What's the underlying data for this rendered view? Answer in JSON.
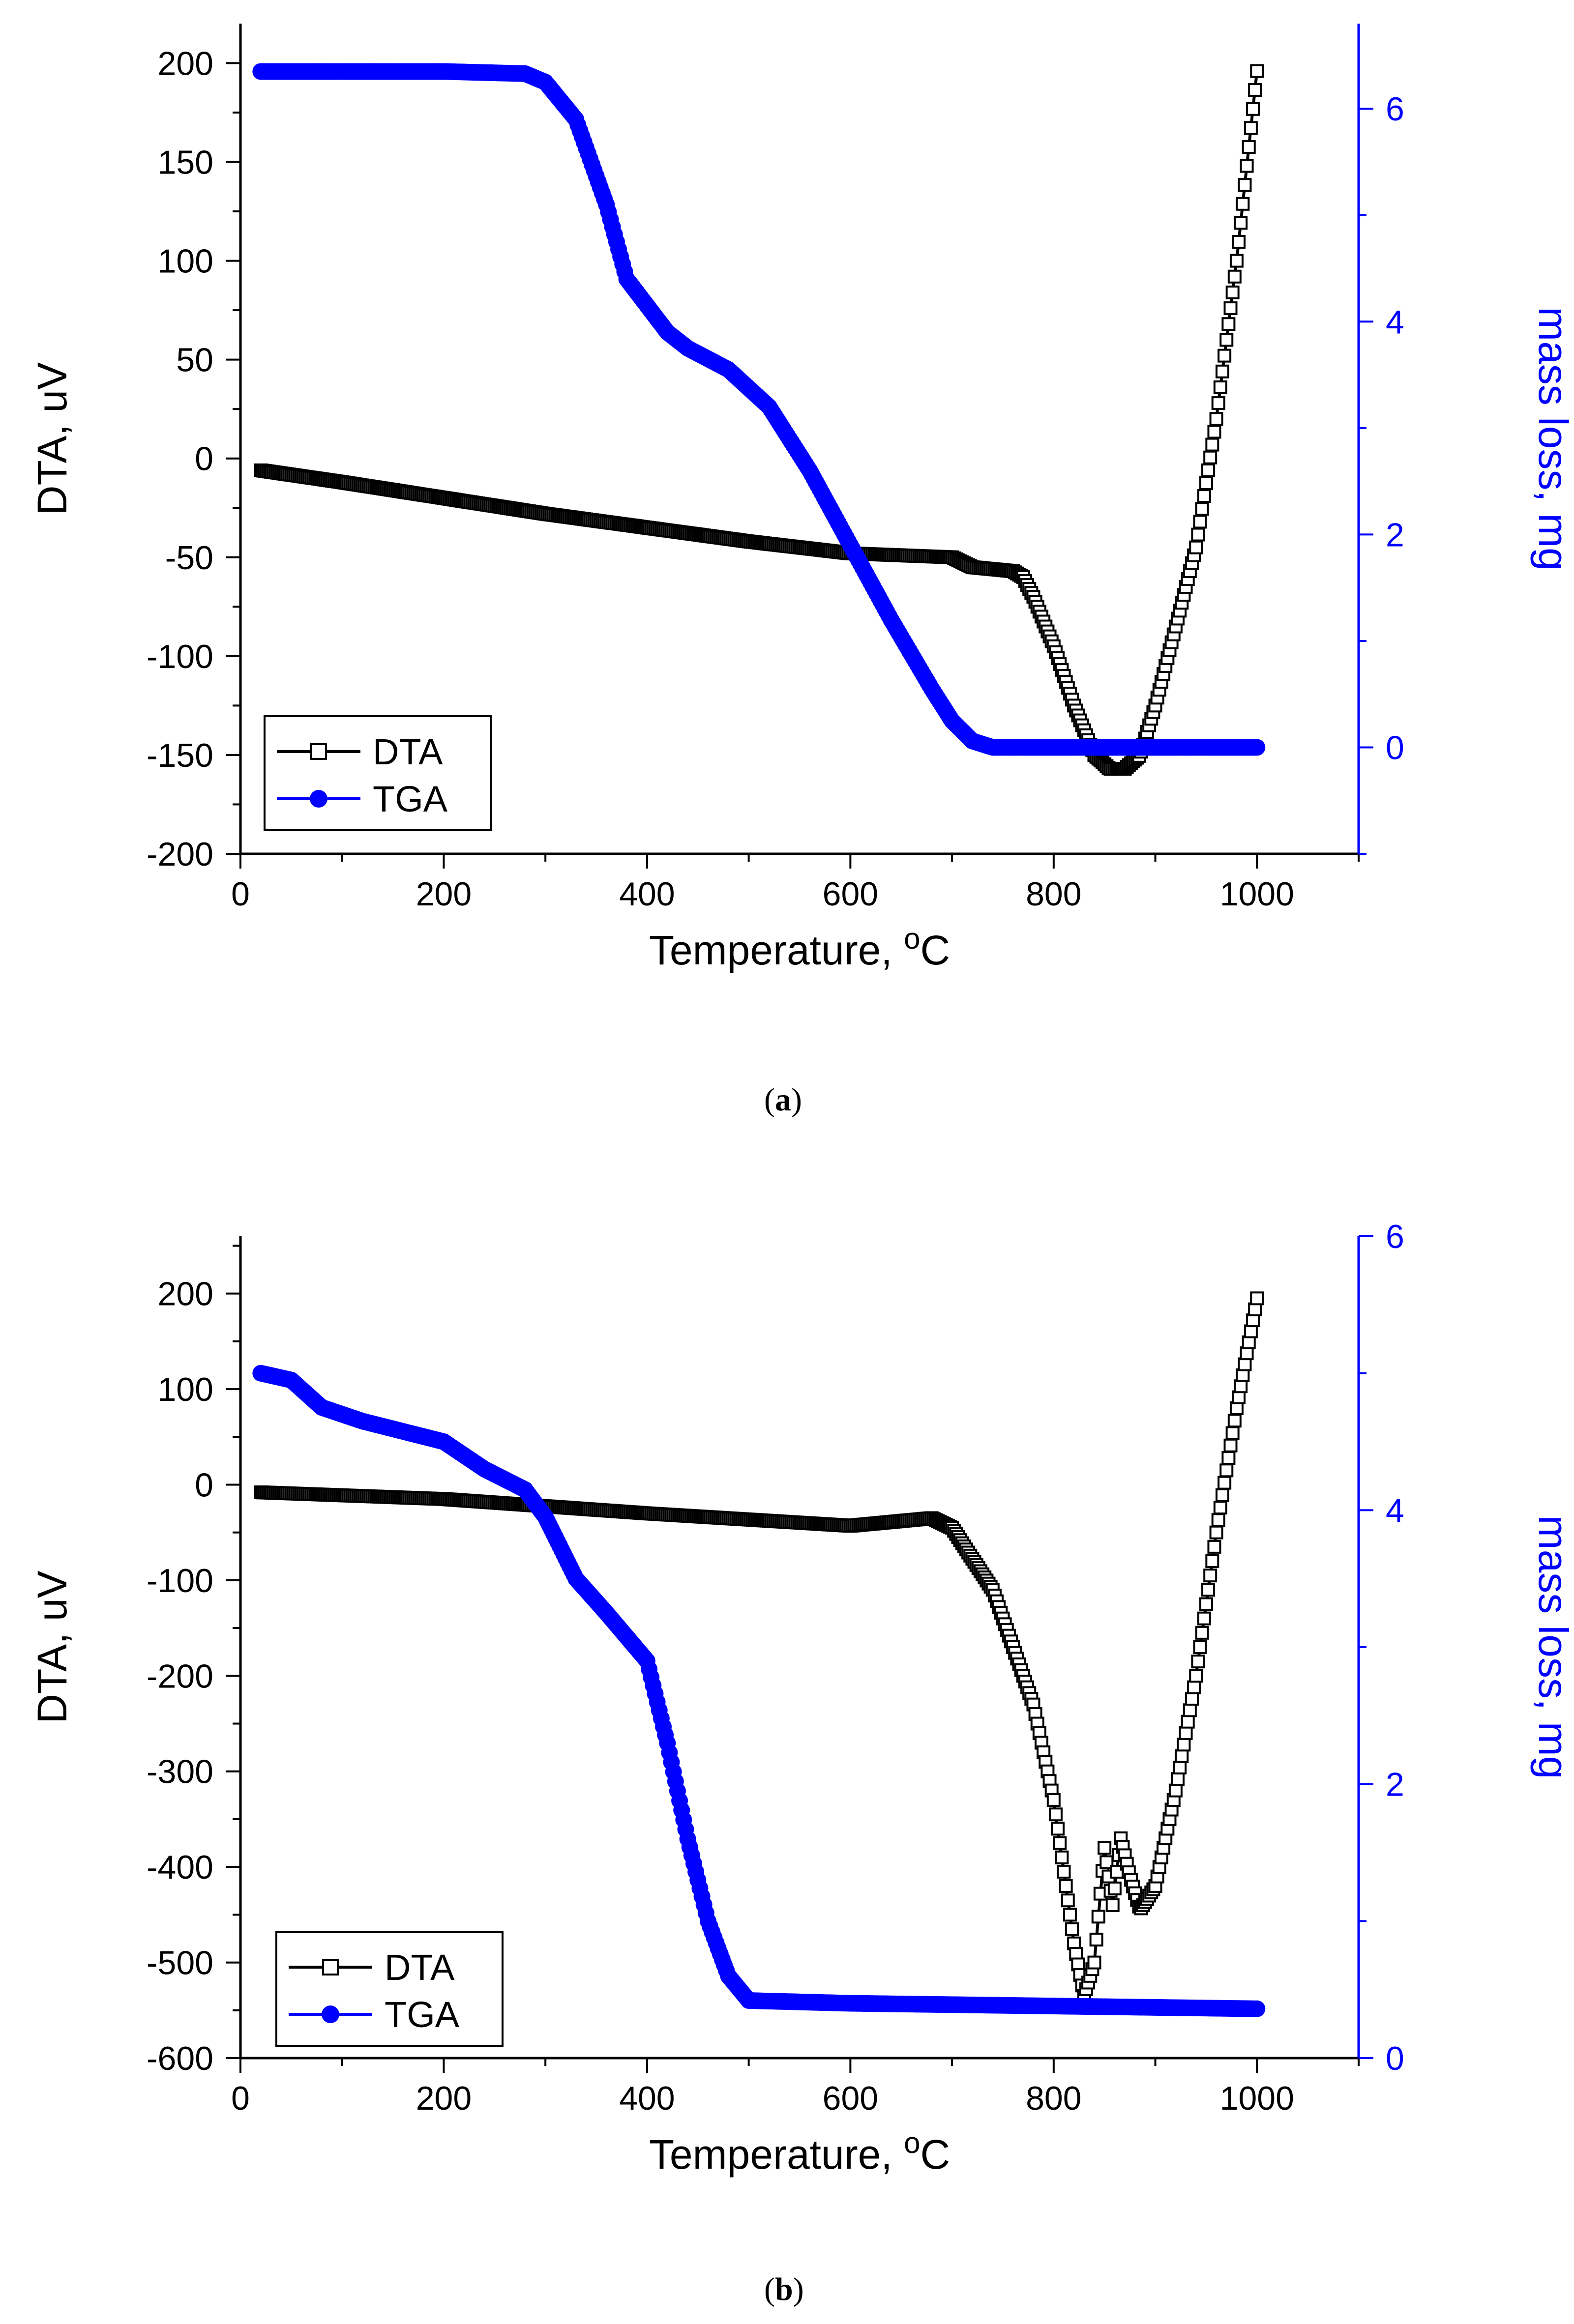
{
  "colors": {
    "dta": "#000000",
    "tga": "#0000ff",
    "axis": "#000000"
  },
  "legend": {
    "dta": "DTA",
    "tga": "TGA"
  },
  "chart_data": [
    {
      "id": "a",
      "type": "line",
      "caption": {
        "label": "a"
      },
      "xlabel": {
        "main": "Temperature, ",
        "sup": "o",
        "unit": "C"
      },
      "ylabel_left": "DTA, uV",
      "ylabel_right": "mass loss, mg",
      "xlim": [
        0,
        1100
      ],
      "ylim_left": [
        -200,
        220
      ],
      "ylim_right": [
        -1,
        6.8
      ],
      "x_ticks": [
        0,
        200,
        400,
        600,
        800,
        1000
      ],
      "y_left_ticks": [
        -200,
        -150,
        -100,
        -50,
        0,
        50,
        100,
        150,
        200
      ],
      "y_right_ticks": [
        0,
        2,
        4,
        6
      ],
      "series": [
        {
          "name": "DTA",
          "axis": "left",
          "marker": "open-square",
          "x": [
            20,
            100,
            200,
            300,
            400,
            500,
            600,
            700,
            720,
            760,
            770,
            780,
            800,
            820,
            840,
            855,
            870,
            885,
            900,
            920,
            940,
            960,
            980,
            1000
          ],
          "y": [
            -6,
            -12,
            -20,
            -28,
            -35,
            -42,
            -48,
            -50,
            -55,
            -57,
            -60,
            -70,
            -95,
            -125,
            -150,
            -157,
            -157,
            -150,
            -125,
            -85,
            -45,
            20,
            100,
            196
          ]
        },
        {
          "name": "TGA",
          "axis": "right",
          "marker": "filled-circle",
          "x": [
            20,
            200,
            280,
            300,
            330,
            360,
            380,
            400,
            420,
            440,
            480,
            520,
            560,
            600,
            640,
            680,
            700,
            720,
            740,
            800,
            900,
            1000
          ],
          "y": [
            6.35,
            6.35,
            6.33,
            6.25,
            5.9,
            5.1,
            4.4,
            4.15,
            3.9,
            3.75,
            3.55,
            3.2,
            2.6,
            1.9,
            1.2,
            0.55,
            0.25,
            0.06,
            0.0,
            0.0,
            0.0,
            0.0
          ]
        }
      ]
    },
    {
      "id": "b",
      "type": "line",
      "caption": {
        "label": "b"
      },
      "xlabel": {
        "main": "Temperature, ",
        "sup": "o",
        "unit": "C"
      },
      "ylabel_left": "DTA, uV",
      "ylabel_right": "mass loss, mg",
      "xlim": [
        0,
        1100
      ],
      "ylim_left": [
        -600,
        260
      ],
      "ylim_right": [
        0,
        6
      ],
      "x_ticks": [
        0,
        200,
        400,
        600,
        800,
        1000
      ],
      "y_left_ticks": [
        -600,
        -500,
        -400,
        -300,
        -200,
        -100,
        0,
        100,
        200
      ],
      "y_right_ticks": [
        0,
        2,
        4,
        6
      ],
      "series": [
        {
          "name": "DTA",
          "axis": "left",
          "marker": "open-square",
          "x": [
            20,
            200,
            400,
            600,
            650,
            680,
            700,
            740,
            780,
            800,
            820,
            830,
            840,
            850,
            858,
            866,
            875,
            885,
            900,
            920,
            940,
            960,
            980,
            1000
          ],
          "y": [
            -8,
            -15,
            -30,
            -43,
            -38,
            -35,
            -45,
            -110,
            -230,
            -330,
            -480,
            -535,
            -500,
            -380,
            -440,
            -370,
            -410,
            -445,
            -420,
            -320,
            -200,
            -50,
            80,
            195
          ]
        },
        {
          "name": "TGA",
          "axis": "right",
          "marker": "filled-circle",
          "x": [
            20,
            50,
            80,
            120,
            200,
            240,
            280,
            300,
            330,
            360,
            400,
            420,
            440,
            460,
            480,
            500,
            600,
            800,
            1000
          ],
          "y": [
            5.0,
            4.95,
            4.75,
            4.65,
            4.5,
            4.3,
            4.15,
            3.95,
            3.5,
            3.25,
            2.9,
            2.3,
            1.6,
            1.0,
            0.6,
            0.42,
            0.4,
            0.38,
            0.36
          ]
        }
      ]
    }
  ]
}
